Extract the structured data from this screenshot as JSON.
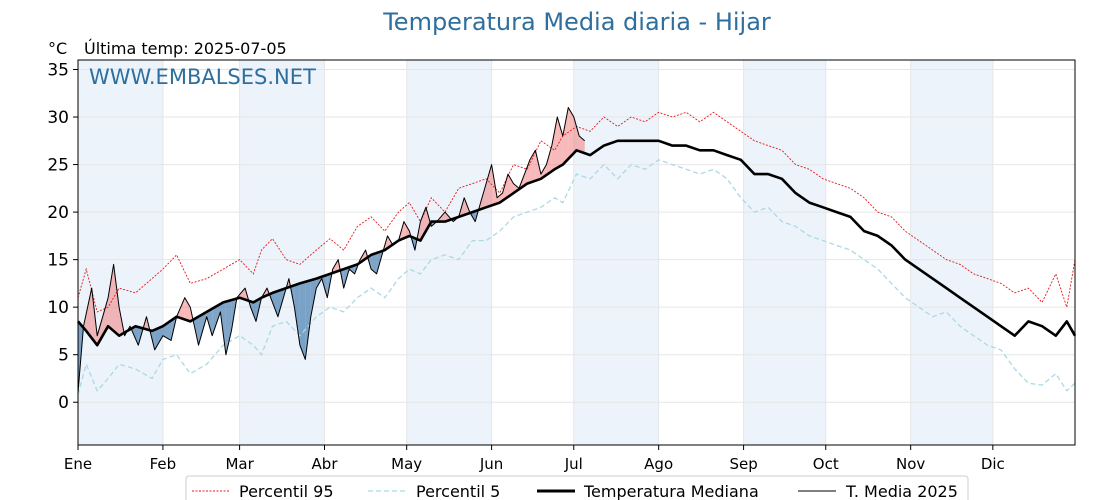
{
  "chart_data": {
    "type": "line",
    "title": "Temperatura Media diaria - Hijar",
    "subtitle": "Última temp: 2025-07-05",
    "unit_label": "°C",
    "watermark": "WWW.EMBALSES.NET",
    "xlim": [
      1,
      365
    ],
    "ylim": [
      -4.5,
      36
    ],
    "y_ticks": [
      0,
      5,
      10,
      15,
      20,
      25,
      30,
      35
    ],
    "x_ticks": [
      {
        "day": 1,
        "label": "Ene"
      },
      {
        "day": 32,
        "label": "Feb"
      },
      {
        "day": 60,
        "label": "Mar"
      },
      {
        "day": 91,
        "label": "Abr"
      },
      {
        "day": 121,
        "label": "May"
      },
      {
        "day": 152,
        "label": "Jun"
      },
      {
        "day": 182,
        "label": "Jul"
      },
      {
        "day": 213,
        "label": "Ago"
      },
      {
        "day": 244,
        "label": "Sep"
      },
      {
        "day": 274,
        "label": "Oct"
      },
      {
        "day": 305,
        "label": "Nov"
      },
      {
        "day": 335,
        "label": "Dic"
      }
    ],
    "legend": {
      "placement": "bottom"
    },
    "colors": {
      "p95": "#e41a1c",
      "p5": "#add8e6",
      "median": "#000000",
      "current": "#000000",
      "above": "#f08080",
      "below": "#4a7fb0",
      "band": "#dde9f5"
    },
    "series": [
      {
        "name": "Percentil 95",
        "key": "p95",
        "points": [
          [
            1,
            11
          ],
          [
            4,
            14
          ],
          [
            8,
            9.5
          ],
          [
            12,
            10
          ],
          [
            16,
            12
          ],
          [
            22,
            11.5
          ],
          [
            28,
            13
          ],
          [
            32,
            14
          ],
          [
            37,
            15.5
          ],
          [
            42,
            12.5
          ],
          [
            48,
            13
          ],
          [
            54,
            14
          ],
          [
            60,
            15
          ],
          [
            65,
            13.5
          ],
          [
            68,
            16
          ],
          [
            72,
            17.2
          ],
          [
            77,
            15
          ],
          [
            82,
            14.5
          ],
          [
            88,
            16
          ],
          [
            93,
            17.2
          ],
          [
            98,
            16
          ],
          [
            103,
            18.5
          ],
          [
            108,
            19.5
          ],
          [
            113,
            18
          ],
          [
            118,
            20
          ],
          [
            122,
            21
          ],
          [
            126,
            19
          ],
          [
            130,
            21.5
          ],
          [
            135,
            20
          ],
          [
            140,
            22.5
          ],
          [
            145,
            23
          ],
          [
            150,
            23.5
          ],
          [
            155,
            22
          ],
          [
            160,
            25
          ],
          [
            165,
            24.5
          ],
          [
            170,
            27.5
          ],
          [
            175,
            26.5
          ],
          [
            178,
            28
          ],
          [
            183,
            29
          ],
          [
            188,
            28.5
          ],
          [
            193,
            30
          ],
          [
            198,
            29
          ],
          [
            203,
            30
          ],
          [
            208,
            29.5
          ],
          [
            213,
            30.5
          ],
          [
            218,
            30
          ],
          [
            223,
            30.5
          ],
          [
            228,
            29.5
          ],
          [
            233,
            30.5
          ],
          [
            238,
            29.5
          ],
          [
            243,
            28.5
          ],
          [
            248,
            27.5
          ],
          [
            253,
            27
          ],
          [
            258,
            26.5
          ],
          [
            263,
            25
          ],
          [
            268,
            24.5
          ],
          [
            273,
            23.5
          ],
          [
            278,
            23
          ],
          [
            283,
            22.5
          ],
          [
            288,
            21.5
          ],
          [
            293,
            20
          ],
          [
            298,
            19.5
          ],
          [
            303,
            18
          ],
          [
            308,
            17
          ],
          [
            313,
            16
          ],
          [
            318,
            15
          ],
          [
            323,
            14.5
          ],
          [
            328,
            13.5
          ],
          [
            333,
            13
          ],
          [
            338,
            12.5
          ],
          [
            343,
            11.5
          ],
          [
            348,
            12
          ],
          [
            353,
            10.5
          ],
          [
            358,
            13.5
          ],
          [
            362,
            10
          ],
          [
            365,
            15
          ]
        ]
      },
      {
        "name": "Percentil 5",
        "key": "p5",
        "points": [
          [
            1,
            0.8
          ],
          [
            4,
            4
          ],
          [
            8,
            1.2
          ],
          [
            12,
            2.5
          ],
          [
            16,
            4
          ],
          [
            22,
            3.5
          ],
          [
            28,
            2.5
          ],
          [
            32,
            4.5
          ],
          [
            37,
            5
          ],
          [
            42,
            3
          ],
          [
            48,
            4
          ],
          [
            54,
            6
          ],
          [
            60,
            7
          ],
          [
            65,
            6
          ],
          [
            68,
            5
          ],
          [
            72,
            8
          ],
          [
            77,
            8.5
          ],
          [
            82,
            7
          ],
          [
            88,
            9
          ],
          [
            93,
            10
          ],
          [
            98,
            9.5
          ],
          [
            103,
            11
          ],
          [
            108,
            12
          ],
          [
            113,
            11
          ],
          [
            118,
            13
          ],
          [
            122,
            14
          ],
          [
            126,
            13.5
          ],
          [
            130,
            15
          ],
          [
            135,
            15.5
          ],
          [
            140,
            15
          ],
          [
            145,
            17
          ],
          [
            150,
            17
          ],
          [
            155,
            18
          ],
          [
            160,
            19.5
          ],
          [
            165,
            20
          ],
          [
            170,
            20.5
          ],
          [
            175,
            21.5
          ],
          [
            178,
            21
          ],
          [
            183,
            24
          ],
          [
            188,
            23.5
          ],
          [
            193,
            25
          ],
          [
            198,
            23.5
          ],
          [
            203,
            25
          ],
          [
            208,
            24.5
          ],
          [
            213,
            25.5
          ],
          [
            218,
            25
          ],
          [
            223,
            24.5
          ],
          [
            228,
            24
          ],
          [
            233,
            24.5
          ],
          [
            238,
            23.5
          ],
          [
            243,
            21.5
          ],
          [
            248,
            20
          ],
          [
            253,
            20.5
          ],
          [
            258,
            19
          ],
          [
            263,
            18.5
          ],
          [
            268,
            17.5
          ],
          [
            273,
            17
          ],
          [
            278,
            16.5
          ],
          [
            283,
            16
          ],
          [
            288,
            15
          ],
          [
            293,
            14
          ],
          [
            298,
            12.5
          ],
          [
            303,
            11
          ],
          [
            308,
            10
          ],
          [
            313,
            9
          ],
          [
            318,
            9.5
          ],
          [
            323,
            8
          ],
          [
            328,
            7
          ],
          [
            333,
            6
          ],
          [
            338,
            5.5
          ],
          [
            343,
            3.5
          ],
          [
            348,
            2
          ],
          [
            353,
            1.8
          ],
          [
            358,
            3
          ],
          [
            362,
            1.2
          ],
          [
            365,
            2
          ]
        ]
      },
      {
        "name": "Temperatura Mediana",
        "key": "median",
        "points": [
          [
            1,
            8.5
          ],
          [
            4,
            7.5
          ],
          [
            8,
            6
          ],
          [
            12,
            8
          ],
          [
            16,
            7
          ],
          [
            22,
            8
          ],
          [
            28,
            7.5
          ],
          [
            32,
            8
          ],
          [
            37,
            9
          ],
          [
            42,
            8.5
          ],
          [
            48,
            9.5
          ],
          [
            54,
            10.5
          ],
          [
            60,
            11
          ],
          [
            65,
            10.5
          ],
          [
            68,
            11
          ],
          [
            72,
            11.5
          ],
          [
            77,
            12
          ],
          [
            82,
            12.5
          ],
          [
            88,
            13
          ],
          [
            93,
            13.5
          ],
          [
            98,
            14
          ],
          [
            103,
            14.5
          ],
          [
            108,
            15.5
          ],
          [
            113,
            16
          ],
          [
            118,
            17
          ],
          [
            122,
            17.5
          ],
          [
            126,
            17
          ],
          [
            130,
            19
          ],
          [
            135,
            19
          ],
          [
            140,
            19.5
          ],
          [
            145,
            20
          ],
          [
            150,
            20.5
          ],
          [
            155,
            21
          ],
          [
            160,
            22
          ],
          [
            165,
            23
          ],
          [
            170,
            23.5
          ],
          [
            175,
            24.5
          ],
          [
            178,
            25
          ],
          [
            183,
            26.5
          ],
          [
            188,
            26
          ],
          [
            193,
            27
          ],
          [
            198,
            27.5
          ],
          [
            203,
            27.5
          ],
          [
            208,
            27.5
          ],
          [
            213,
            27.5
          ],
          [
            218,
            27
          ],
          [
            223,
            27
          ],
          [
            228,
            26.5
          ],
          [
            233,
            26.5
          ],
          [
            238,
            26
          ],
          [
            243,
            25.5
          ],
          [
            248,
            24
          ],
          [
            253,
            24
          ],
          [
            258,
            23.5
          ],
          [
            263,
            22
          ],
          [
            268,
            21
          ],
          [
            273,
            20.5
          ],
          [
            278,
            20
          ],
          [
            283,
            19.5
          ],
          [
            288,
            18
          ],
          [
            293,
            17.5
          ],
          [
            298,
            16.5
          ],
          [
            303,
            15
          ],
          [
            308,
            14
          ],
          [
            313,
            13
          ],
          [
            318,
            12
          ],
          [
            323,
            11
          ],
          [
            328,
            10
          ],
          [
            333,
            9
          ],
          [
            338,
            8
          ],
          [
            343,
            7
          ],
          [
            348,
            8.5
          ],
          [
            353,
            8
          ],
          [
            358,
            7
          ],
          [
            362,
            8.5
          ],
          [
            365,
            7
          ]
        ]
      },
      {
        "name": "T. Media 2025",
        "key": "current",
        "points": [
          [
            1,
            1
          ],
          [
            3,
            8
          ],
          [
            6,
            12
          ],
          [
            8,
            7
          ],
          [
            10,
            9
          ],
          [
            12,
            11
          ],
          [
            14,
            14.5
          ],
          [
            16,
            10
          ],
          [
            18,
            7
          ],
          [
            20,
            8
          ],
          [
            23,
            6
          ],
          [
            26,
            9
          ],
          [
            29,
            5.5
          ],
          [
            32,
            7
          ],
          [
            35,
            6.5
          ],
          [
            37,
            9
          ],
          [
            40,
            11
          ],
          [
            42,
            10
          ],
          [
            45,
            6
          ],
          [
            48,
            9
          ],
          [
            50,
            7
          ],
          [
            53,
            9.5
          ],
          [
            55,
            5
          ],
          [
            57,
            7.5
          ],
          [
            59,
            11
          ],
          [
            62,
            12
          ],
          [
            64,
            10
          ],
          [
            66,
            8.5
          ],
          [
            68,
            11
          ],
          [
            70,
            12
          ],
          [
            72,
            10.5
          ],
          [
            74,
            9
          ],
          [
            76,
            11
          ],
          [
            78,
            13
          ],
          [
            80,
            10
          ],
          [
            82,
            6
          ],
          [
            84,
            4.5
          ],
          [
            86,
            9
          ],
          [
            88,
            12
          ],
          [
            90,
            13
          ],
          [
            92,
            11
          ],
          [
            94,
            14
          ],
          [
            96,
            15
          ],
          [
            98,
            12
          ],
          [
            100,
            14
          ],
          [
            102,
            13.5
          ],
          [
            104,
            15
          ],
          [
            106,
            16
          ],
          [
            108,
            14
          ],
          [
            110,
            13.5
          ],
          [
            112,
            15.5
          ],
          [
            114,
            17.5
          ],
          [
            116,
            16.5
          ],
          [
            118,
            17
          ],
          [
            120,
            19
          ],
          [
            122,
            18
          ],
          [
            124,
            16
          ],
          [
            126,
            19
          ],
          [
            128,
            20.5
          ],
          [
            130,
            18.5
          ],
          [
            132,
            19
          ],
          [
            135,
            20
          ],
          [
            138,
            19
          ],
          [
            140,
            19.5
          ],
          [
            142,
            21.5
          ],
          [
            144,
            20
          ],
          [
            146,
            19
          ],
          [
            148,
            21
          ],
          [
            150,
            23
          ],
          [
            152,
            25
          ],
          [
            154,
            21.5
          ],
          [
            156,
            22
          ],
          [
            158,
            24
          ],
          [
            160,
            23
          ],
          [
            162,
            22.5
          ],
          [
            164,
            24
          ],
          [
            166,
            25.5
          ],
          [
            168,
            26.5
          ],
          [
            170,
            24
          ],
          [
            172,
            25
          ],
          [
            174,
            27
          ],
          [
            176,
            30
          ],
          [
            178,
            28
          ],
          [
            180,
            31
          ],
          [
            182,
            30
          ],
          [
            184,
            28
          ],
          [
            186,
            27.5
          ]
        ]
      }
    ]
  },
  "legend_labels": [
    "Percentil 95",
    "Percentil 5",
    "Temperatura Mediana",
    "T. Media 2025"
  ]
}
